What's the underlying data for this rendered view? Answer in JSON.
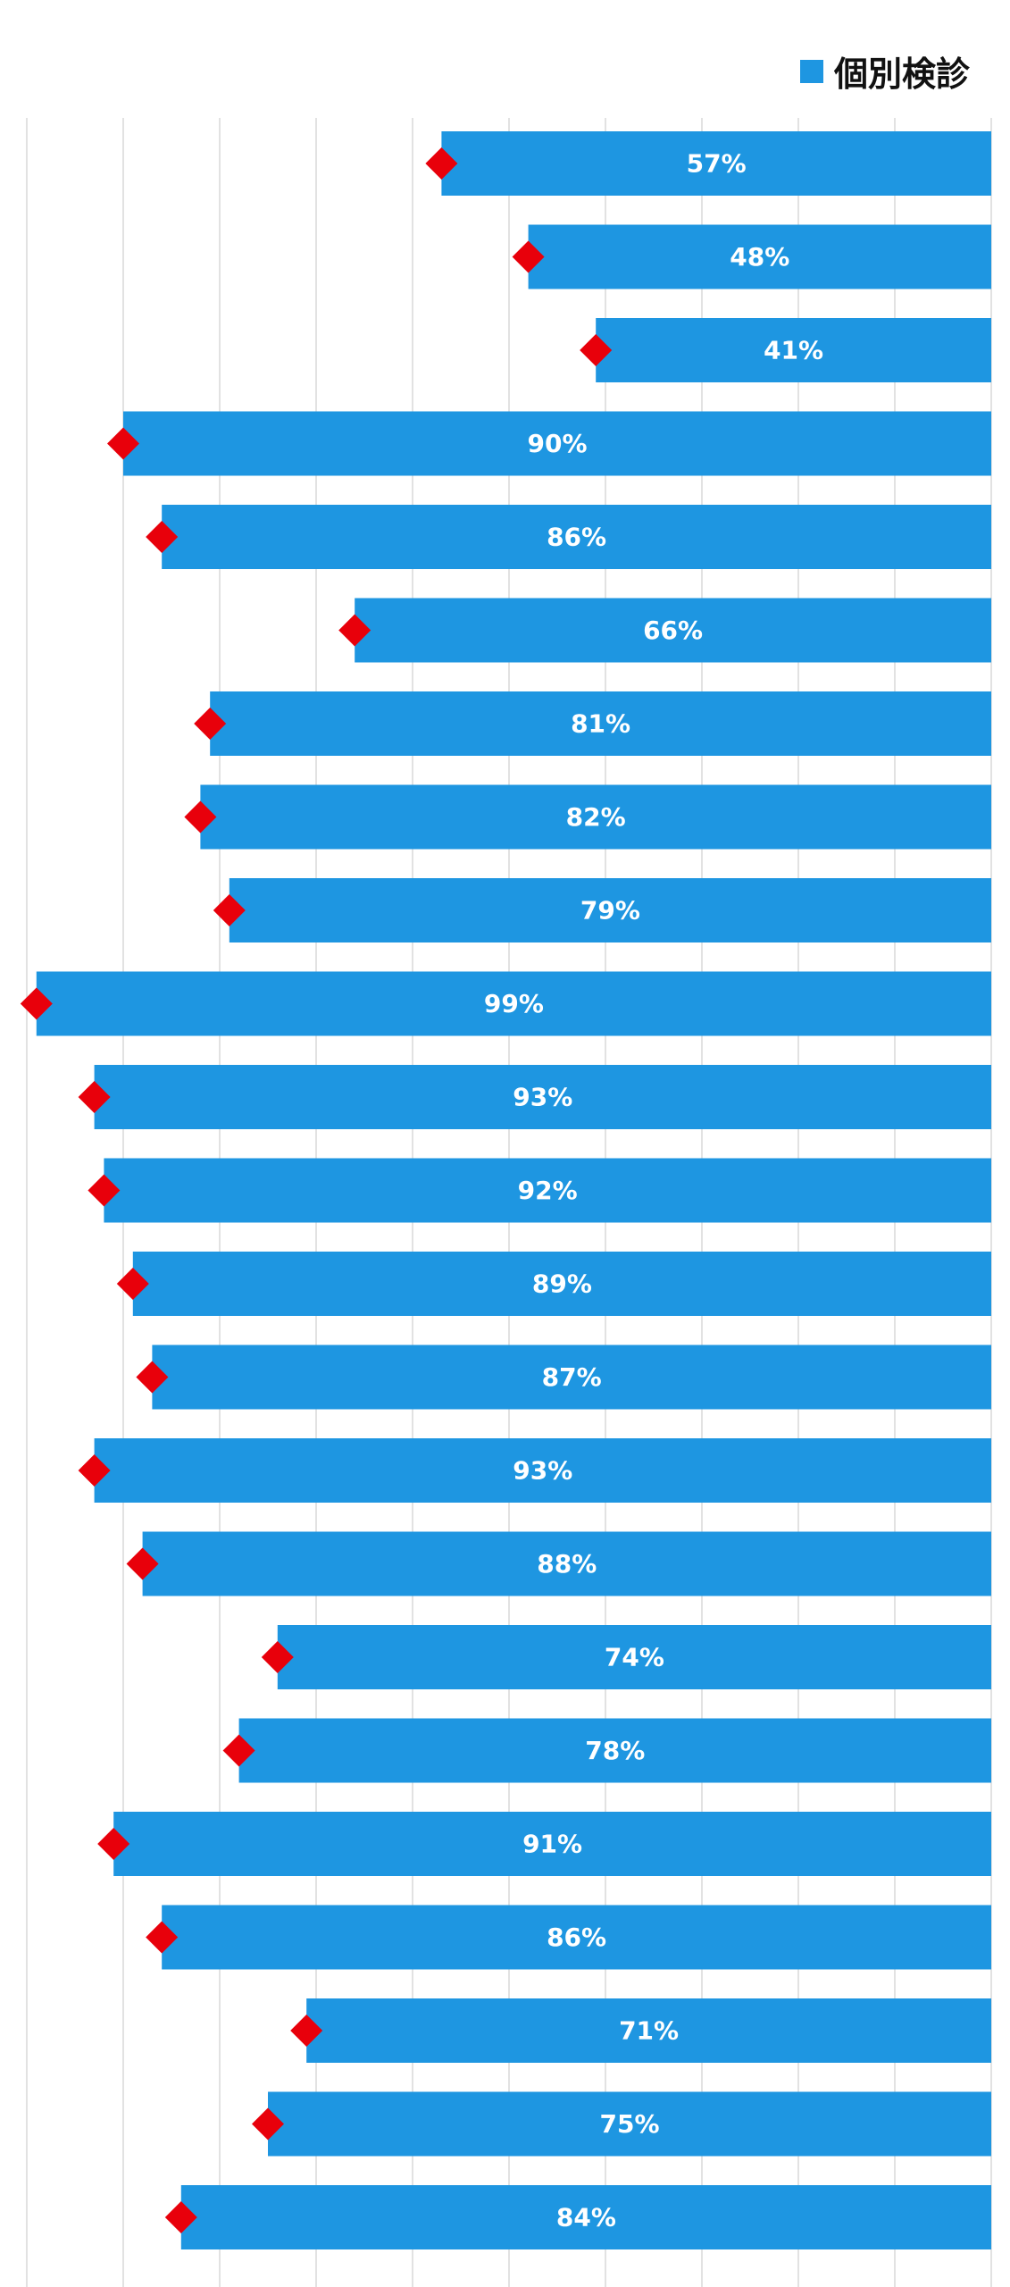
{
  "chart_data": {
    "type": "bar",
    "orientation": "horizontal",
    "direction": "right-aligned",
    "legend": {
      "position": "top-right",
      "entries": [
        {
          "name": "個別検診",
          "color": "#1E96E1"
        }
      ]
    },
    "xlim": [
      0,
      100
    ],
    "grid": true,
    "series": [
      {
        "name": "個別検診",
        "color": "#1E96E1",
        "values": [
          57,
          48,
          41,
          90,
          86,
          66,
          81,
          82,
          79,
          99,
          93,
          92,
          89,
          87,
          93,
          88,
          74,
          78,
          91,
          86,
          71,
          75,
          84
        ],
        "labels": [
          "57%",
          "48%",
          "41%",
          "90%",
          "86%",
          "66%",
          "81%",
          "82%",
          "79%",
          "99%",
          "93%",
          "92%",
          "89%",
          "87%",
          "93%",
          "88%",
          "74%",
          "78%",
          "91%",
          "86%",
          "71%",
          "75%",
          "84%"
        ]
      }
    ],
    "marker_color": "#E8000B"
  }
}
